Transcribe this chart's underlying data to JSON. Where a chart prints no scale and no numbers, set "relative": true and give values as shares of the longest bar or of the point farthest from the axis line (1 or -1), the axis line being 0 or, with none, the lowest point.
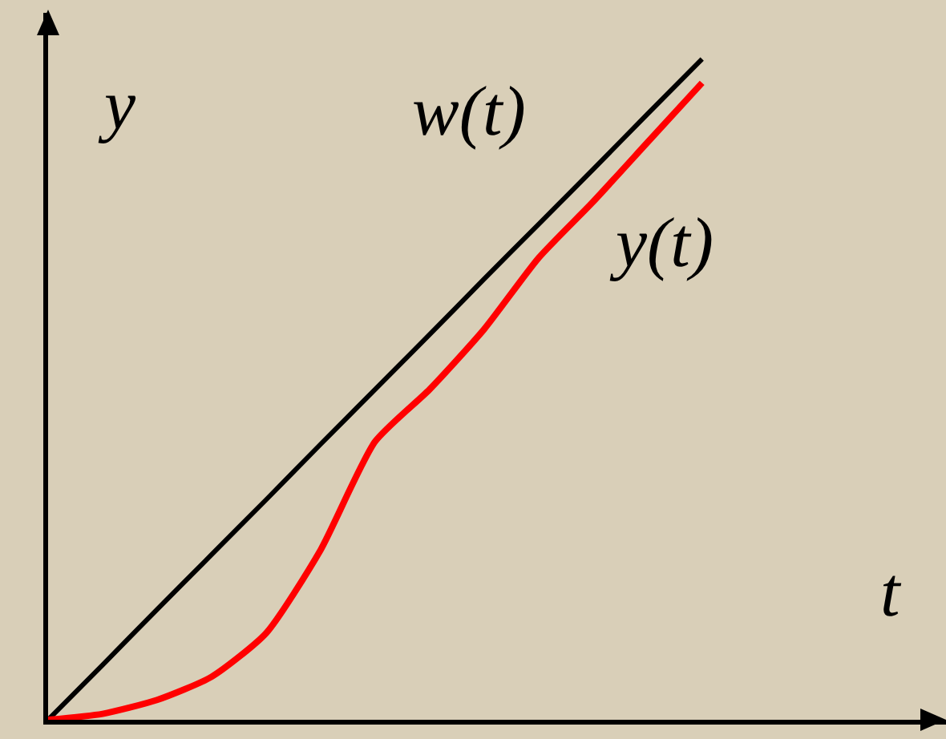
{
  "chart_data": {
    "type": "line",
    "relative": true,
    "xlabel": "t",
    "ylabel": "y",
    "legend": false,
    "categories": [
      null,
      null,
      null,
      null,
      null,
      null,
      null,
      null,
      null,
      null,
      null,
      null,
      null
    ],
    "series": [
      {
        "name": "w(t)",
        "color": "#000000",
        "values": [
          0,
          0.083,
          0.167,
          0.25,
          0.333,
          0.417,
          0.5,
          0.583,
          0.667,
          0.75,
          0.833,
          0.917,
          1
        ]
      },
      {
        "name": "y(t)",
        "color": "#ff0000",
        "values": [
          0,
          0.009,
          0.03,
          0.065,
          0.131,
          0.257,
          0.421,
          0.5,
          0.591,
          0.699,
          0.784,
          0.874,
          0.964
        ]
      }
    ]
  }
}
